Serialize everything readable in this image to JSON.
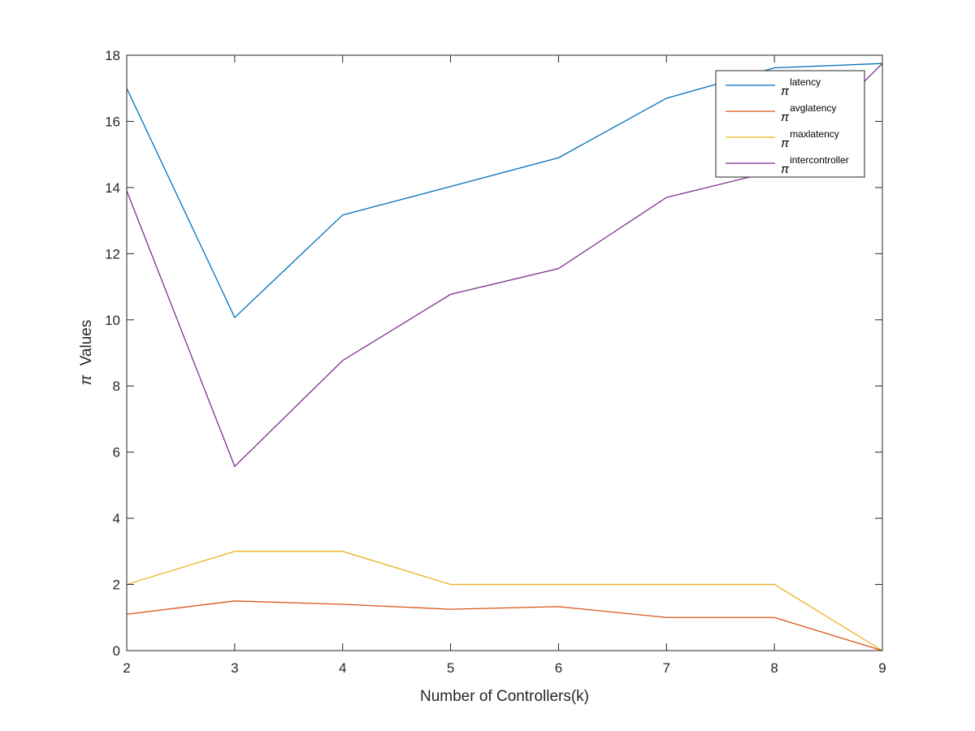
{
  "chart_data": {
    "type": "line",
    "title": "",
    "xlabel": "Number of Controllers(k)",
    "ylabel_symbol": "π",
    "ylabel_text": "Values",
    "x": [
      2,
      3,
      4,
      5,
      6,
      7,
      8,
      9
    ],
    "xlim": [
      2,
      9
    ],
    "ylim": [
      0,
      18
    ],
    "xticks": [
      "2",
      "3",
      "4",
      "5",
      "6",
      "7",
      "8",
      "9"
    ],
    "yticks": [
      "0",
      "2",
      "4",
      "6",
      "8",
      "10",
      "12",
      "14",
      "16",
      "18"
    ],
    "grid": false,
    "legend_position": "top-right",
    "series": [
      {
        "symbol": "π",
        "name": "latency",
        "color": "#0072BD",
        "values": [
          17.0,
          10.07,
          13.17,
          14.03,
          14.9,
          16.7,
          17.62,
          17.75
        ]
      },
      {
        "symbol": "π",
        "name": "avglatency",
        "color": "#D95319",
        "values": [
          1.1,
          1.5,
          1.4,
          1.25,
          1.33,
          1.0,
          1.0,
          0.0
        ]
      },
      {
        "symbol": "π",
        "name": "maxlatency",
        "color": "#EDB120",
        "values": [
          2.0,
          3.0,
          3.0,
          2.0,
          2.0,
          2.0,
          2.0,
          0.0
        ]
      },
      {
        "symbol": "π",
        "name": "intercontroller",
        "color": "#7E2F8E",
        "values": [
          13.9,
          5.57,
          8.77,
          10.77,
          11.55,
          13.7,
          14.5,
          17.75
        ]
      }
    ]
  }
}
